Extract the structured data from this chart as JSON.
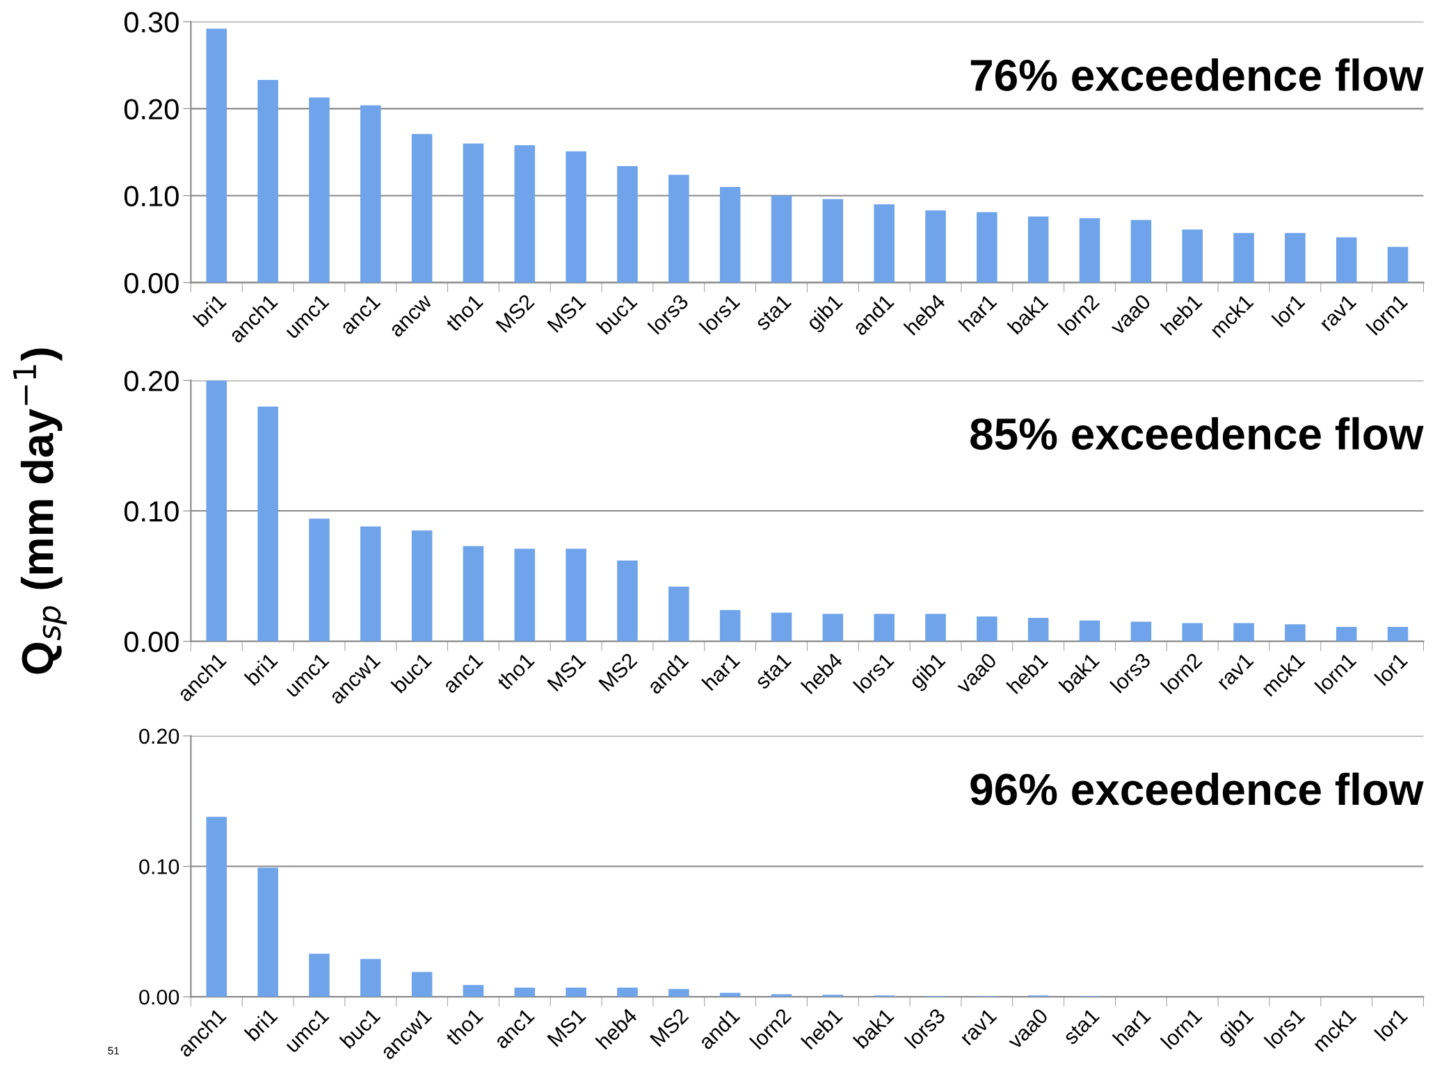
{
  "chart_data": [
    {
      "type": "bar",
      "title": "76% exceedence flow",
      "categories": [
        "bri1",
        "anch1",
        "umc1",
        "anc1",
        "ancw",
        "tho1",
        "MS2",
        "MS1",
        "buc1",
        "lors3",
        "lors1",
        "sta1",
        "gib1",
        "and1",
        "heb4",
        "har1",
        "bak1",
        "lorn2",
        "vaa0",
        "heb1",
        "mck1",
        "lor1",
        "rav1",
        "lorn1"
      ],
      "values": [
        0.292,
        0.233,
        0.213,
        0.204,
        0.171,
        0.16,
        0.158,
        0.151,
        0.134,
        0.124,
        0.11,
        0.1,
        0.096,
        0.09,
        0.083,
        0.081,
        0.076,
        0.074,
        0.072,
        0.061,
        0.057,
        0.057,
        0.052,
        0.041
      ],
      "color": "#6fa3ea",
      "ylim": [
        0,
        0.3
      ],
      "yticks": [
        {
          "value": 0,
          "label": "0.00"
        },
        {
          "value": 0.1,
          "label": "0.10"
        },
        {
          "value": 0.2,
          "label": "0.20"
        },
        {
          "value": 0.3,
          "label": "0.30"
        }
      ],
      "grid": "y"
    },
    {
      "type": "bar",
      "title": "85% exceedence flow",
      "ylabel": "Q$_{sp}$ (mm day$^{−1}$)",
      "categories": [
        "anch1",
        "bri1",
        "umc1",
        "ancw1",
        "buc1",
        "anc1",
        "tho1",
        "MS1",
        "MS2",
        "and1",
        "har1",
        "sta1",
        "heb4",
        "lors1",
        "gib1",
        "vaa0",
        "heb1",
        "bak1",
        "lors3",
        "lorn2",
        "rav1",
        "mck1",
        "lorn1",
        "lor1"
      ],
      "values": [
        0.2,
        0.18,
        0.094,
        0.088,
        0.085,
        0.073,
        0.071,
        0.071,
        0.062,
        0.042,
        0.024,
        0.022,
        0.021,
        0.021,
        0.021,
        0.019,
        0.018,
        0.016,
        0.015,
        0.014,
        0.014,
        0.013,
        0.011,
        0.011
      ],
      "color": "#6fa3ea",
      "ylim": [
        0,
        0.2
      ],
      "yticks": [
        {
          "value": 0,
          "label": "0.00"
        },
        {
          "value": 0.1,
          "label": "0.10"
        },
        {
          "value": 0.2,
          "label": "0.20"
        }
      ],
      "grid": "y"
    },
    {
      "type": "bar",
      "title": "96% exceedence flow",
      "categories": [
        "anch1",
        "bri1",
        "umc1",
        "buc1",
        "ancw1",
        "tho1",
        "anc1",
        "MS1",
        "heb4",
        "MS2",
        "and1",
        "lorn2",
        "heb1",
        "bak1",
        "lors3",
        "rav1",
        "vaa0",
        "sta1",
        "har1",
        "lorn1",
        "gib1",
        "lors1",
        "mck1",
        "lor1"
      ],
      "values": [
        0.138,
        0.099,
        0.033,
        0.029,
        0.019,
        0.009,
        0.007,
        0.007,
        0.007,
        0.006,
        0.003,
        0.002,
        0.0015,
        0.001,
        0.0005,
        0.0005,
        0.001,
        0.0005,
        0,
        0,
        0,
        0,
        0,
        0
      ],
      "color": "#6fa3ea",
      "ylim": [
        0,
        0.2
      ],
      "yticks": [
        {
          "value": 0,
          "label": "0.00"
        },
        {
          "value": 0.1,
          "label": "0.10"
        },
        {
          "value": 0.2,
          "label": "0.20"
        }
      ],
      "grid": "y",
      "annotations": [
        "51"
      ]
    }
  ]
}
